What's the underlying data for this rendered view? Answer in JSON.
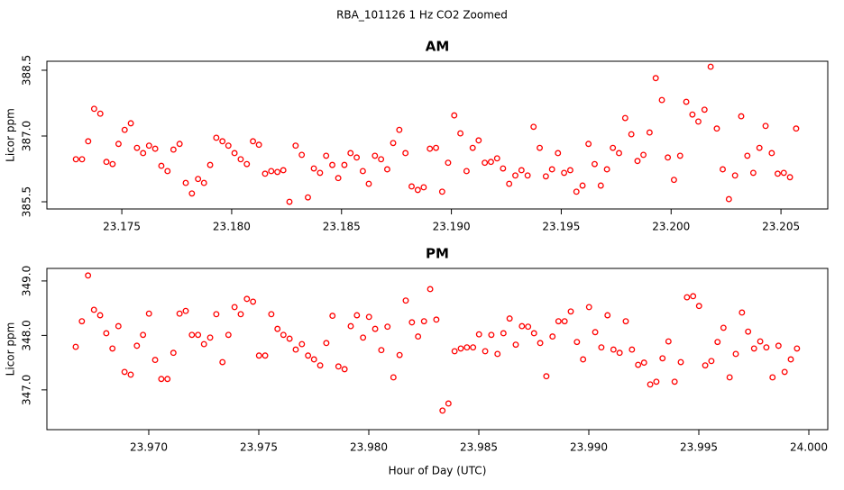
{
  "title": "RBA_101126  1 Hz CO2 Zoomed",
  "chart_data": [
    {
      "type": "scatter",
      "title": "AM",
      "ylabel": "Licor ppm",
      "xlim": [
        23.17159,
        23.20713
      ],
      "ylim": [
        385.336,
        388.705
      ],
      "xticks": [
        23.175,
        {
          "value": 23.18,
          "label": "23.180"
        },
        23.185,
        {
          "value": 23.19,
          "label": "23.190"
        },
        23.195,
        {
          "value": 23.2,
          "label": "23.200"
        },
        23.205
      ],
      "yticks": [
        385.5,
        {
          "value": 387,
          "label": "387.0"
        },
        388.5
      ],
      "series": [
        {
          "color": "#ff0000",
          "x": [
            23.17291,
            23.17319,
            23.17347,
            23.17374,
            23.17402,
            23.1743,
            23.17458,
            23.17485,
            23.17513,
            23.17541,
            23.17569,
            23.17597,
            23.17624,
            23.17652,
            23.1768,
            23.17708,
            23.17735,
            23.17763,
            23.17791,
            23.17819,
            23.17847,
            23.17874,
            23.17902,
            23.1793,
            23.17958,
            23.17985,
            23.18013,
            23.18041,
            23.18069,
            23.18097,
            23.18124,
            23.18152,
            23.1818,
            23.18208,
            23.18235,
            23.18263,
            23.18291,
            23.18319,
            23.18347,
            23.18374,
            23.18402,
            23.1843,
            23.18458,
            23.18485,
            23.18513,
            23.18541,
            23.18569,
            23.18597,
            23.18624,
            23.18652,
            23.1868,
            23.18708,
            23.18735,
            23.18763,
            23.18791,
            23.18819,
            23.18847,
            23.18874,
            23.18902,
            23.1893,
            23.18958,
            23.18985,
            23.19013,
            23.19041,
            23.19069,
            23.19097,
            23.19124,
            23.19152,
            23.1918,
            23.19208,
            23.19235,
            23.19263,
            23.19291,
            23.19319,
            23.19347,
            23.19374,
            23.19402,
            23.1943,
            23.19458,
            23.19485,
            23.19513,
            23.19541,
            23.19569,
            23.19597,
            23.19624,
            23.19652,
            23.1968,
            23.19708,
            23.19735,
            23.19763,
            23.19791,
            23.19819,
            23.19847,
            23.19874,
            23.19902,
            23.1993,
            23.19958,
            23.19985,
            23.20013,
            23.20041,
            23.20069,
            23.20097,
            23.20124,
            23.20152,
            23.2018,
            23.20208,
            23.20235,
            23.20263,
            23.20291,
            23.20319,
            23.20347,
            23.20374,
            23.20402,
            23.2043,
            23.20458,
            23.20485,
            23.20513,
            23.20541,
            23.20569
          ],
          "values": [
            386.47,
            386.47,
            386.88,
            387.62,
            387.51,
            386.41,
            386.36,
            386.82,
            387.14,
            387.29,
            386.73,
            386.61,
            386.78,
            386.71,
            386.32,
            386.2,
            386.69,
            386.82,
            385.93,
            385.69,
            386.02,
            385.93,
            386.34,
            386.96,
            386.88,
            386.78,
            386.61,
            386.47,
            386.36,
            386.88,
            386.8,
            386.14,
            386.2,
            386.18,
            386.22,
            385.5,
            386.78,
            386.57,
            385.6,
            386.26,
            386.16,
            386.55,
            386.34,
            386.04,
            386.34,
            386.61,
            386.51,
            386.2,
            385.91,
            386.55,
            386.47,
            386.24,
            386.84,
            387.14,
            386.61,
            385.85,
            385.77,
            385.83,
            386.71,
            386.73,
            385.73,
            386.39,
            387.47,
            387.06,
            386.2,
            386.73,
            386.9,
            386.39,
            386.41,
            386.49,
            386.26,
            385.91,
            386.1,
            386.22,
            386.1,
            387.21,
            386.73,
            386.08,
            386.24,
            386.61,
            386.16,
            386.22,
            385.73,
            385.87,
            386.82,
            386.36,
            385.87,
            386.24,
            386.73,
            386.61,
            387.41,
            387.04,
            386.43,
            386.57,
            387.08,
            388.32,
            387.82,
            386.51,
            386.0,
            386.55,
            387.78,
            387.49,
            387.33,
            387.6,
            388.58,
            387.17,
            386.24,
            385.56,
            386.1,
            387.45,
            386.55,
            386.16,
            386.73,
            387.23,
            386.61,
            386.14,
            386.16,
            386.06,
            387.17
          ]
        }
      ]
    },
    {
      "type": "scatter",
      "title": "PM",
      "ylabel": "Licor ppm",
      "xlabel": "Hour of Day (UTC)",
      "xlim": [
        23.96537,
        24.00086
      ],
      "ylim": [
        346.27,
        349.23
      ],
      "xticks": [
        {
          "value": 23.97,
          "label": "23.970"
        },
        23.975,
        {
          "value": 23.98,
          "label": "23.980"
        },
        23.985,
        {
          "value": 23.99,
          "label": "23.990"
        },
        23.995,
        {
          "value": 24,
          "label": "24.000"
        }
      ],
      "yticks": [
        {
          "value": 347,
          "label": "347.0"
        },
        {
          "value": 348,
          "label": "348.0"
        },
        {
          "value": 349,
          "label": "349.0"
        }
      ],
      "series": [
        {
          "color": "#ff0000",
          "x": [
            23.96668,
            23.96696,
            23.96724,
            23.96751,
            23.96779,
            23.96807,
            23.96835,
            23.96862,
            23.9689,
            23.96918,
            23.96946,
            23.96974,
            23.97001,
            23.97029,
            23.97057,
            23.97085,
            23.97112,
            23.9714,
            23.97168,
            23.97196,
            23.97224,
            23.97251,
            23.97279,
            23.97307,
            23.97335,
            23.97362,
            23.9739,
            23.97418,
            23.97446,
            23.97474,
            23.97501,
            23.97529,
            23.97557,
            23.97585,
            23.97612,
            23.9764,
            23.97668,
            23.97696,
            23.97724,
            23.97751,
            23.97779,
            23.97807,
            23.97835,
            23.97862,
            23.9789,
            23.97918,
            23.97946,
            23.97974,
            23.98001,
            23.98029,
            23.98057,
            23.98085,
            23.98112,
            23.9814,
            23.98168,
            23.98196,
            23.98224,
            23.98251,
            23.98279,
            23.98307,
            23.98335,
            23.98362,
            23.9839,
            23.98418,
            23.98446,
            23.98474,
            23.98501,
            23.98529,
            23.98557,
            23.98585,
            23.98612,
            23.9864,
            23.98668,
            23.98696,
            23.98724,
            23.98751,
            23.98779,
            23.98807,
            23.98835,
            23.98862,
            23.9889,
            23.98918,
            23.98946,
            23.98974,
            23.99001,
            23.99029,
            23.99057,
            23.99085,
            23.99112,
            23.9914,
            23.99168,
            23.99196,
            23.99224,
            23.99251,
            23.99279,
            23.99307,
            23.99335,
            23.99362,
            23.9939,
            23.99418,
            23.99446,
            23.99474,
            23.99501,
            23.99529,
            23.99557,
            23.99585,
            23.99612,
            23.9964,
            23.99668,
            23.99696,
            23.99724,
            23.99751,
            23.99779,
            23.99807,
            23.99835,
            23.99862,
            23.9989,
            23.99918,
            23.99946
          ],
          "values": [
            347.79,
            348.26,
            349.1,
            348.47,
            348.37,
            348.04,
            347.76,
            348.17,
            347.33,
            347.28,
            347.81,
            348.01,
            348.4,
            347.55,
            347.2,
            347.2,
            347.68,
            348.4,
            348.45,
            348.01,
            348.01,
            347.84,
            347.96,
            348.39,
            347.51,
            348.01,
            348.52,
            348.39,
            348.67,
            348.62,
            347.63,
            347.63,
            348.39,
            348.12,
            348.01,
            347.94,
            347.74,
            347.84,
            347.63,
            347.56,
            347.45,
            347.86,
            348.36,
            347.43,
            347.38,
            348.17,
            348.37,
            347.96,
            348.34,
            348.12,
            347.73,
            348.16,
            347.23,
            347.64,
            348.64,
            348.24,
            347.98,
            348.26,
            348.85,
            348.29,
            346.62,
            346.75,
            347.71,
            347.76,
            347.78,
            347.78,
            348.02,
            347.71,
            348.01,
            347.66,
            348.04,
            348.31,
            347.83,
            348.17,
            348.16,
            348.04,
            347.86,
            347.25,
            347.98,
            348.26,
            348.26,
            348.44,
            347.88,
            347.56,
            348.52,
            348.06,
            347.78,
            348.37,
            347.74,
            347.68,
            348.26,
            347.74,
            347.46,
            347.5,
            347.1,
            347.15,
            347.58,
            347.89,
            347.15,
            347.51,
            348.7,
            348.72,
            348.54,
            347.45,
            347.53,
            347.88,
            348.14,
            347.23,
            347.66,
            348.42,
            348.07,
            347.76,
            347.89,
            347.78,
            347.23,
            347.81,
            347.33,
            347.56,
            347.76
          ]
        }
      ]
    }
  ]
}
